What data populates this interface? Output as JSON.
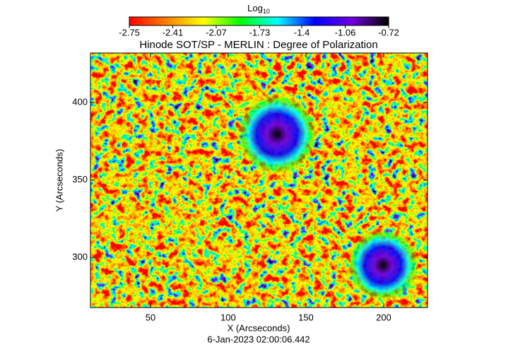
{
  "chart_data": {
    "type": "heatmap",
    "title": "Hinode SOT/SP - MERLIN : Degree of Polarization",
    "subtitle": "6-Jan-2023 02:00:06.442",
    "x_label": "X (Arcseconds)",
    "y_label": "Y (Arcseconds)",
    "xlim": [
      11.4,
      228.2
    ],
    "xticks": [
      50,
      100,
      150,
      200
    ],
    "ylim": [
      267.6,
      432
    ],
    "yticks": [
      300,
      350,
      400
    ],
    "colorbar": {
      "label": "Log",
      "label_sub": "10",
      "lim": [
        -2.75,
        -0.72
      ],
      "ticks": [
        -2.75,
        -2.41,
        -2.07,
        -1.73,
        -1.4,
        -1.06,
        -0.72
      ],
      "colors": [
        "#ff0000",
        "#ff8000",
        "#ffff00",
        "#00ff00",
        "#00ffff",
        "#0000ff",
        "#7000e0",
        "#000000"
      ]
    }
  }
}
